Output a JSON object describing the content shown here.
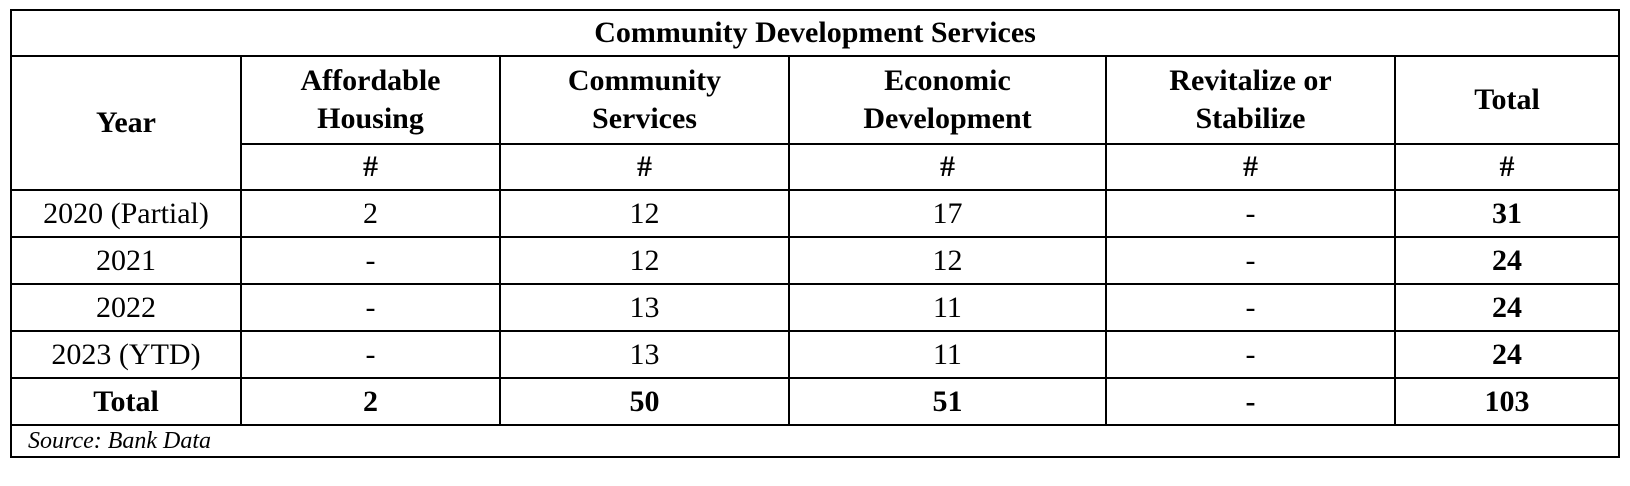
{
  "table": {
    "title": "Community Development Services",
    "columns": {
      "year": "Year",
      "affordable_housing": [
        "Affordable",
        "Housing"
      ],
      "community_services": [
        "Community",
        "Services"
      ],
      "economic_development": [
        "Economic",
        "Development"
      ],
      "revitalize_stabilize": [
        "Revitalize or",
        "Stabilize"
      ],
      "total": "Total"
    },
    "units": [
      "#",
      "#",
      "#",
      "#",
      "#"
    ],
    "rows": [
      {
        "year": "2020 (Partial)",
        "affordable_housing": "2",
        "community_services": "12",
        "economic_development": "17",
        "revitalize_stabilize": "-",
        "total": "31"
      },
      {
        "year": "2021",
        "affordable_housing": "-",
        "community_services": "12",
        "economic_development": "12",
        "revitalize_stabilize": "-",
        "total": "24"
      },
      {
        "year": "2022",
        "affordable_housing": "-",
        "community_services": "13",
        "economic_development": "11",
        "revitalize_stabilize": "-",
        "total": "24"
      },
      {
        "year": "2023 (YTD)",
        "affordable_housing": "-",
        "community_services": "13",
        "economic_development": "11",
        "revitalize_stabilize": "-",
        "total": "24"
      }
    ],
    "total_row": {
      "year": "Total",
      "affordable_housing": "2",
      "community_services": "50",
      "economic_development": "51",
      "revitalize_stabilize": "-",
      "total": "103"
    },
    "source": "Source: Bank Data"
  }
}
